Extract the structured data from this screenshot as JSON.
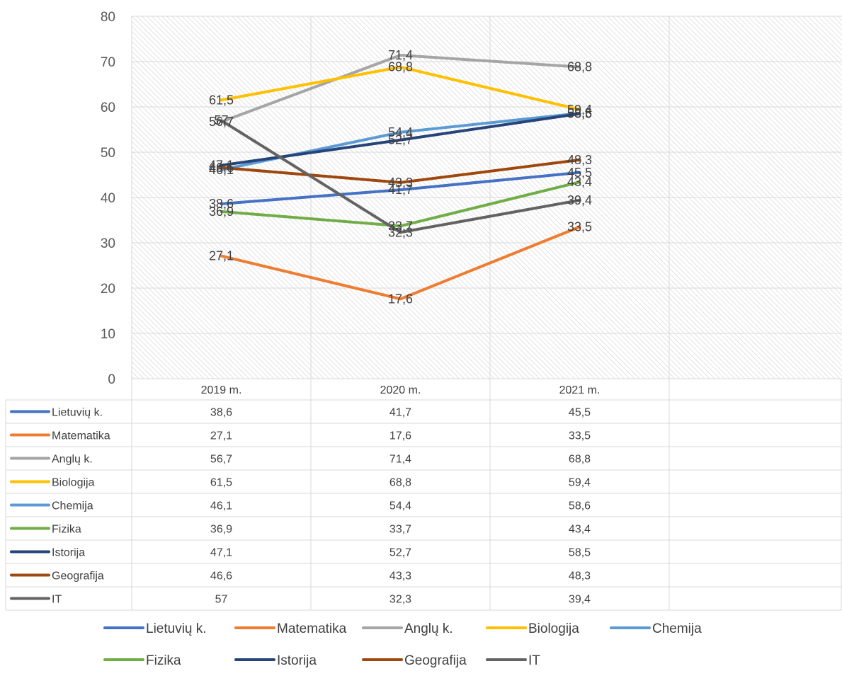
{
  "chart_data": {
    "type": "line",
    "categories": [
      "2019 m.",
      "2020 m.",
      "2021 m."
    ],
    "ylim": [
      0,
      80
    ],
    "yticks": [
      0,
      10,
      20,
      30,
      40,
      50,
      60,
      70,
      80
    ],
    "grid": "horizontal",
    "legend_position": "bottom",
    "data_table": true,
    "series": [
      {
        "name": "Lietuvių k.",
        "color": "#4472C4",
        "values": [
          38.6,
          41.7,
          45.5
        ],
        "labels": [
          "38,6",
          "41,7",
          "45,5"
        ]
      },
      {
        "name": "Matematika",
        "color": "#ED7D31",
        "values": [
          27.1,
          17.6,
          33.5
        ],
        "labels": [
          "27,1",
          "17,6",
          "33,5"
        ]
      },
      {
        "name": "Anglų k.",
        "color": "#A5A5A5",
        "values": [
          56.7,
          71.4,
          68.8
        ],
        "labels": [
          "56,7",
          "71,4",
          "68,8"
        ]
      },
      {
        "name": "Biologija",
        "color": "#FFC000",
        "values": [
          61.5,
          68.8,
          59.4
        ],
        "labels": [
          "61,5",
          "68,8",
          "59,4"
        ]
      },
      {
        "name": "Chemija",
        "color": "#5B9BD5",
        "values": [
          46.1,
          54.4,
          58.6
        ],
        "labels": [
          "46,1",
          "54,4",
          "58,6"
        ]
      },
      {
        "name": "Fizika",
        "color": "#70AD47",
        "values": [
          36.9,
          33.7,
          43.4
        ],
        "labels": [
          "36,9",
          "33,7",
          "43,4"
        ]
      },
      {
        "name": "Istorija",
        "color": "#264478",
        "values": [
          47.1,
          52.7,
          58.5
        ],
        "labels": [
          "47,1",
          "52,7",
          "58,5"
        ]
      },
      {
        "name": "Geografija",
        "color": "#9E480E",
        "values": [
          46.6,
          43.3,
          48.3
        ],
        "labels": [
          "46,6",
          "43,3",
          "48,3"
        ]
      },
      {
        "name": "IT",
        "color": "#636363",
        "values": [
          57,
          32.3,
          39.4
        ],
        "labels": [
          "57",
          "32,3",
          "39,4"
        ]
      }
    ]
  }
}
